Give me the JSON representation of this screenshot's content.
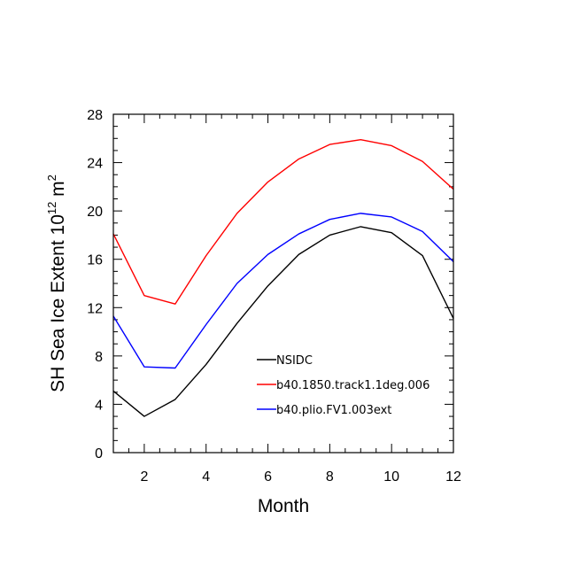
{
  "chart_data": {
    "type": "line",
    "xlabel": "Month",
    "ylabel": {
      "prefix": "SH Sea Ice Extent 10",
      "sup1": "12",
      "mid": " m",
      "sup2": "2"
    },
    "xlim": [
      1,
      12
    ],
    "ylim": [
      0,
      28
    ],
    "xticks": [
      2,
      4,
      6,
      8,
      10,
      12
    ],
    "yticks": [
      0,
      4,
      8,
      12,
      16,
      20,
      24,
      28
    ],
    "x": [
      1,
      2,
      3,
      4,
      5,
      6,
      7,
      8,
      9,
      10,
      11,
      12
    ],
    "series": [
      {
        "name": "NSIDC",
        "color": "#000000",
        "values": [
          5.1,
          3.0,
          4.4,
          7.3,
          10.7,
          13.8,
          16.4,
          18.0,
          18.7,
          18.2,
          16.3,
          11.1
        ]
      },
      {
        "name": "b40.1850.track1.1deg.006",
        "color": "#ff0000",
        "values": [
          18.1,
          13.0,
          12.3,
          16.3,
          19.8,
          22.4,
          24.3,
          25.5,
          25.9,
          25.4,
          24.1,
          21.8
        ]
      },
      {
        "name": "b40.plio.FV1.003ext",
        "color": "#0000ff",
        "values": [
          11.3,
          7.1,
          7.0,
          10.6,
          14.0,
          16.4,
          18.1,
          19.3,
          19.8,
          19.5,
          18.3,
          15.8
        ]
      }
    ],
    "legend_position": "lower-center"
  }
}
